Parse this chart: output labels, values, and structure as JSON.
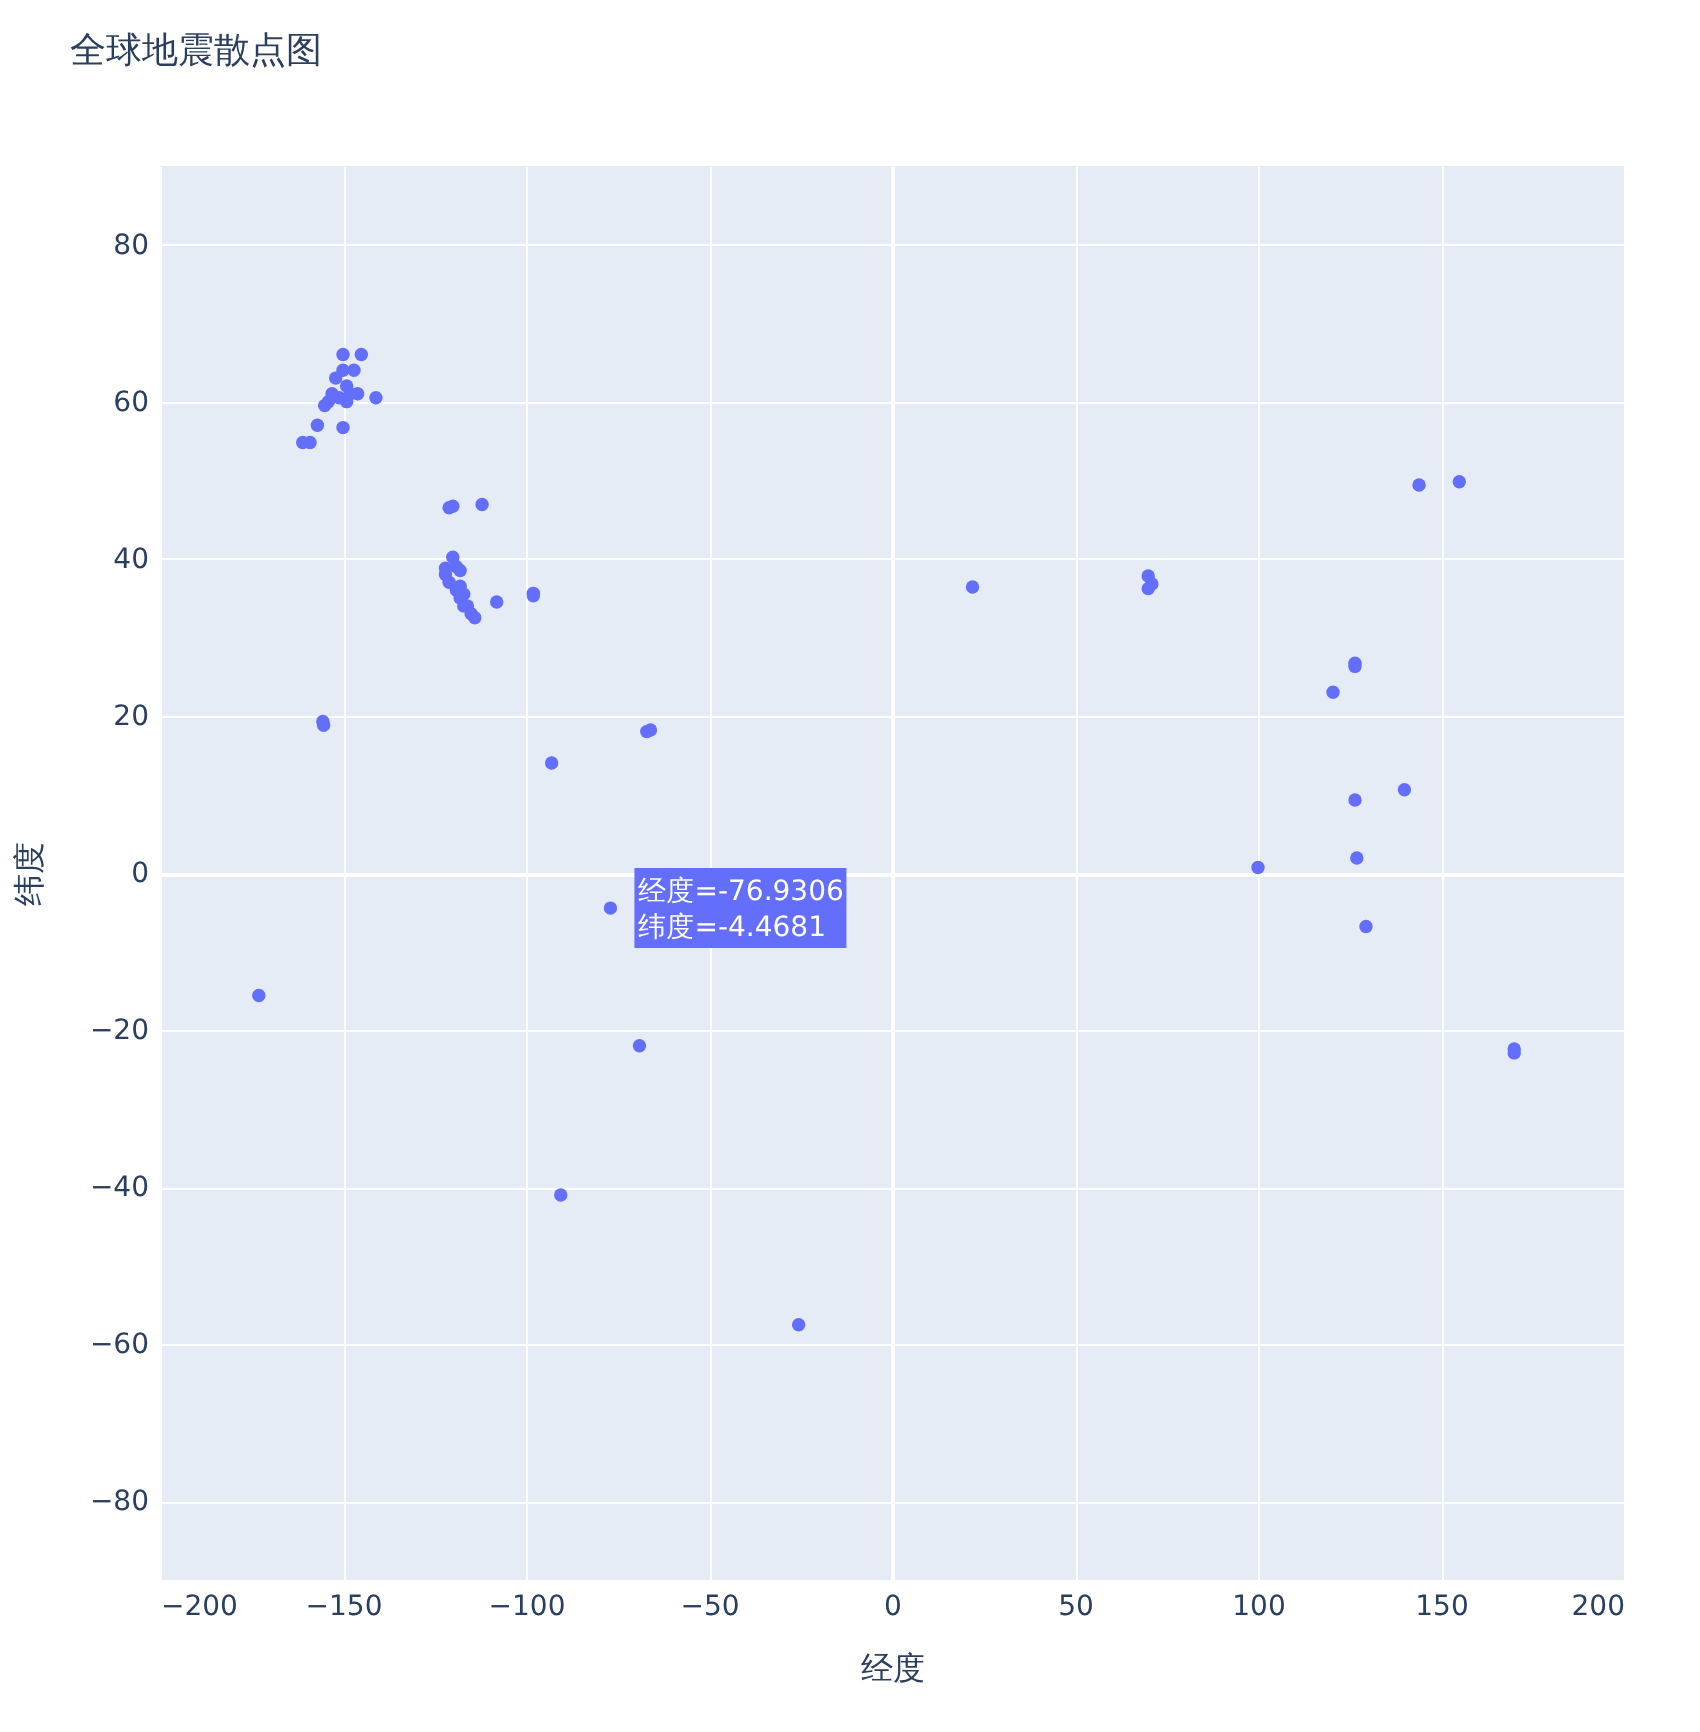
{
  "chart_data": {
    "type": "scatter",
    "title": "全球地震散点图",
    "xlabel": "经度",
    "ylabel": "纬度",
    "xlim": [
      -200,
      200
    ],
    "xticks": [
      -200,
      -150,
      -100,
      -50,
      0,
      50,
      100,
      150,
      200
    ],
    "ylim": [
      -90,
      90
    ],
    "yticks": [
      -80,
      -60,
      -40,
      -20,
      0,
      20,
      40,
      60,
      80
    ],
    "grid": true,
    "annotations": [
      {
        "text": "经度=-76.9306\n纬度=-4.4681",
        "x": -76.9306,
        "y": -4.4681
      }
    ],
    "x": [
      -150,
      -145,
      -150,
      -147,
      -152,
      -149,
      -153,
      -148,
      -154,
      -151,
      -149,
      -146,
      -141,
      -155,
      -157,
      -150,
      -161,
      -159,
      -122,
      -122,
      -121,
      -120,
      -119,
      -118,
      -119,
      -118,
      -117,
      -117,
      -116,
      -115,
      -114,
      -118,
      -121,
      -120,
      -112,
      -108,
      -98,
      -98,
      -155.5,
      -155.3,
      -93,
      -67,
      -66,
      -76.9306,
      -69,
      -90.5,
      -25.5,
      -173,
      22,
      70,
      70,
      71,
      144,
      155,
      126.5,
      126.5,
      120.5,
      126.5,
      140,
      127,
      100,
      129.5,
      170,
      170
    ],
    "series": [
      {
        "color": "#636efa",
        "values": [
          66,
          66,
          64,
          64,
          63,
          62,
          61,
          61,
          60,
          60.5,
          60,
          61,
          60.5,
          59.5,
          57,
          56.7,
          54.8,
          54.8,
          38.8,
          38,
          37,
          40.2,
          39,
          38.5,
          36,
          35,
          34,
          35.5,
          34,
          33,
          32.5,
          36.5,
          46.5,
          46.7,
          46.9,
          34.5,
          35.6,
          35.3,
          19.3,
          18.8,
          14,
          18,
          18.2,
          -4.4681,
          -22,
          -41,
          -57.5,
          -15.6,
          36.4,
          37.8,
          36.2,
          36.8,
          49.4,
          49.8,
          26.7,
          26.3,
          23,
          9.3,
          10.6,
          1.9,
          0.7,
          -6.8,
          -22.4,
          -22.9
        ]
      }
    ]
  }
}
